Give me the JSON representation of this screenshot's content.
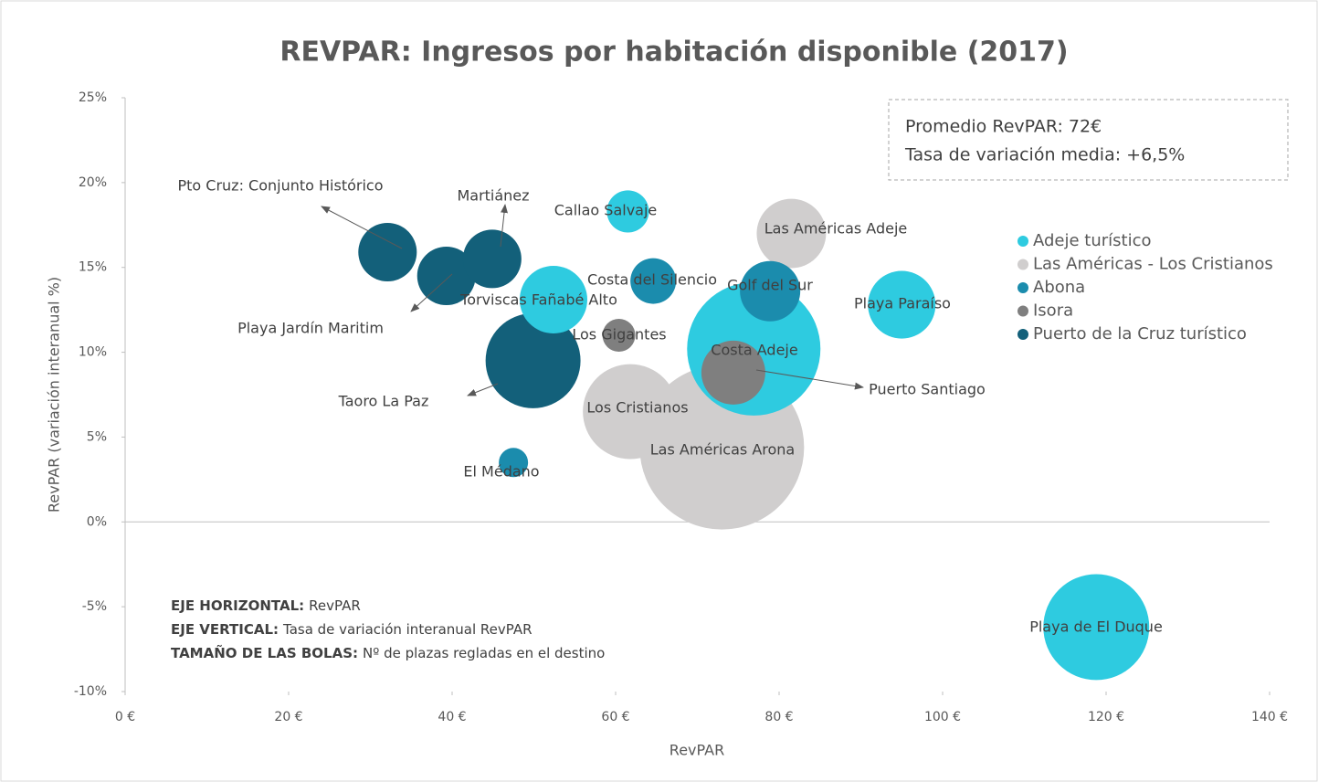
{
  "chart_data": {
    "type": "bubble",
    "title": "REVPAR: Ingresos por habitación disponible (2017)",
    "x_label": "RevPAR",
    "y_label": "RevPAR (variación interanual %)",
    "xlim": [
      0,
      140
    ],
    "ylim": [
      -10,
      25
    ],
    "xticks": [
      {
        "value": 0,
        "label": "0 €"
      },
      {
        "value": 20,
        "label": "20 €"
      },
      {
        "value": 40,
        "label": "40 €"
      },
      {
        "value": 60,
        "label": "60 €"
      },
      {
        "value": 80,
        "label": "80 €"
      },
      {
        "value": 100,
        "label": "100 €"
      },
      {
        "value": 120,
        "label": "120 €"
      },
      {
        "value": 140,
        "label": "140 €"
      }
    ],
    "yticks": [
      {
        "value": -10,
        "label": "-10%"
      },
      {
        "value": -5,
        "label": "-5%"
      },
      {
        "value": 0,
        "label": "0%"
      },
      {
        "value": 5,
        "label": "5%"
      },
      {
        "value": 10,
        "label": "10%"
      },
      {
        "value": 15,
        "label": "15%"
      },
      {
        "value": 20,
        "label": "20%"
      },
      {
        "value": 25,
        "label": "25%"
      }
    ],
    "legend_position": "right",
    "series": [
      {
        "name": "Adeje turístico",
        "color": "#2ecbe0",
        "labels": [
          "Callao Salvaje",
          "Torviscas Fañabé Alto",
          "Costa Adeje",
          "Playa Paraíso",
          "Playa de El Duque"
        ],
        "x": [
          61.5,
          52.4,
          76.9,
          95,
          118.8
        ],
        "values": [
          18.3,
          13.1,
          10.2,
          12.8,
          -6.2
        ],
        "sizes": [
          530,
          1370,
          5330,
          1370,
          3360
        ]
      },
      {
        "name": "Las Américas - Los Cristianos",
        "color": "#d0cece",
        "labels": [
          "Las Américas Adeje",
          "Los Cristianos",
          "Las Américas Arona"
        ],
        "x": [
          81.5,
          61.8,
          73.0
        ],
        "values": [
          17.0,
          6.5,
          4.4
        ],
        "sizes": [
          1440,
          2700,
          8100
        ]
      },
      {
        "name": "Abona",
        "color": "#1b8cad",
        "labels": [
          "Costa del Silencio",
          "Golf del Sur",
          "El Médano"
        ],
        "x": [
          64.6,
          78.9,
          47.5
        ],
        "values": [
          14.2,
          13.6,
          3.5
        ],
        "sizes": [
          625,
          1090,
          256
        ]
      },
      {
        "name": "Isora",
        "color": "#7f7f7f",
        "labels": [
          "Los Gigantes",
          "Puerto Santiago"
        ],
        "x": [
          60.4,
          74.4
        ],
        "values": [
          11.0,
          8.8
        ],
        "sizes": [
          324,
          1225
        ]
      },
      {
        "name": "Puerto de la Cruz turístico",
        "color": "#13607a",
        "labels": [
          "Pto Cruz: Conjunto Histórico",
          "Playa Jardín Maritim",
          "Martiánez",
          "Taoro La Paz"
        ],
        "x": [
          32.1,
          39.3,
          44.9,
          49.9
        ],
        "values": [
          15.9,
          14.5,
          15.5,
          9.5
        ],
        "sizes": [
          1024,
          1024,
          1024,
          2700
        ]
      }
    ],
    "summary": [
      "Promedio RevPAR: 72€",
      "Tasa de variación media: +6,5%"
    ],
    "notes": [
      {
        "label": "EJE HORIZONTAL:",
        "text": "RevPAR"
      },
      {
        "label": "EJE VERTICAL:",
        "text": "Tasa de variación interanual RevPAR"
      },
      {
        "label": "TAMAÑO DE LAS BOLAS:",
        "text": "Nº de plazas regladas en el destino"
      }
    ]
  }
}
